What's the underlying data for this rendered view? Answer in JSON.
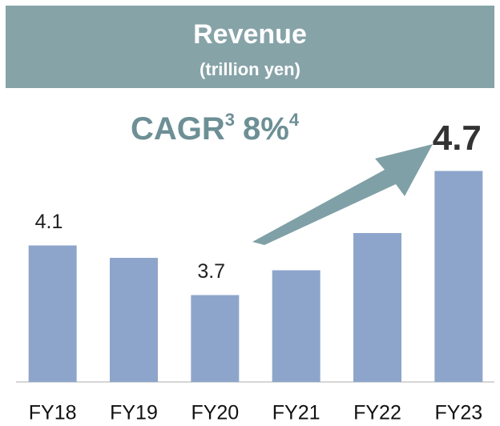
{
  "chart_data": {
    "type": "bar",
    "title": "Revenue",
    "subtitle": "(trillion yen)",
    "categories": [
      "FY18",
      "FY19",
      "FY20",
      "FY21",
      "FY22",
      "FY23"
    ],
    "values": [
      4.1,
      4.0,
      3.7,
      3.9,
      4.2,
      4.7
    ],
    "value_labels": [
      "4.1",
      null,
      "3.7",
      null,
      null,
      "4.7"
    ],
    "color": "#8ea5cb",
    "ylim": [
      3.0,
      5.2
    ],
    "annotation": {
      "label": "CAGR",
      "label_note": "3",
      "value": "8%",
      "value_note": "4"
    }
  }
}
